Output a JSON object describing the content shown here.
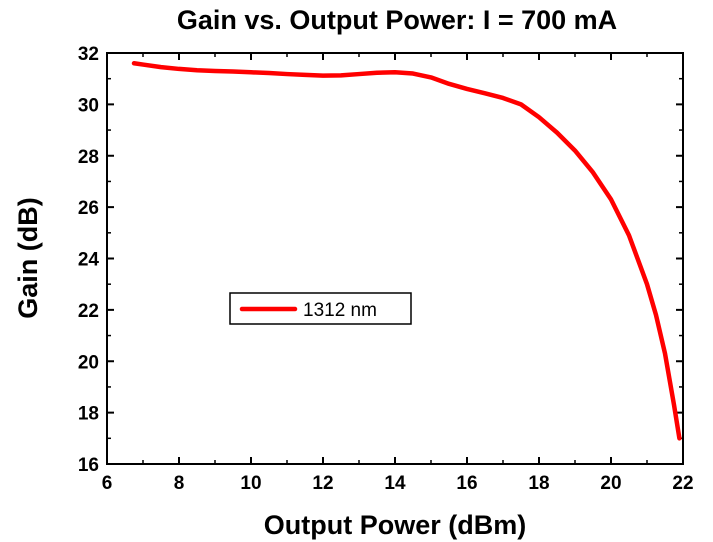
{
  "chart_data": {
    "type": "line",
    "title": "Gain vs. Output Power: I = 700 mA",
    "xlabel": "Output Power (dBm)",
    "ylabel": "Gain (dB)",
    "xlim": [
      6,
      22
    ],
    "ylim": [
      16,
      32
    ],
    "xticks": [
      6,
      8,
      10,
      12,
      14,
      16,
      18,
      20,
      22
    ],
    "yticks": [
      16,
      18,
      20,
      22,
      24,
      26,
      28,
      30,
      32
    ],
    "grid": false,
    "legend_position": "center-left",
    "series": [
      {
        "name": "1312 nm",
        "color": "#ff0000",
        "x": [
          6.75,
          7.0,
          7.5,
          8.0,
          8.5,
          9.0,
          9.5,
          10.0,
          10.5,
          11.0,
          11.5,
          12.0,
          12.5,
          13.0,
          13.5,
          14.0,
          14.5,
          15.0,
          15.5,
          16.0,
          16.5,
          17.0,
          17.5,
          18.0,
          18.5,
          19.0,
          19.5,
          20.0,
          20.5,
          21.0,
          21.25,
          21.5,
          21.75,
          21.9
        ],
        "y": [
          31.6,
          31.55,
          31.45,
          31.38,
          31.33,
          31.3,
          31.28,
          31.25,
          31.22,
          31.18,
          31.15,
          31.12,
          31.13,
          31.18,
          31.23,
          31.25,
          31.2,
          31.05,
          30.8,
          30.6,
          30.43,
          30.25,
          30.0,
          29.5,
          28.9,
          28.2,
          27.35,
          26.3,
          24.9,
          23.0,
          21.8,
          20.3,
          18.3,
          17.0
        ]
      }
    ]
  }
}
